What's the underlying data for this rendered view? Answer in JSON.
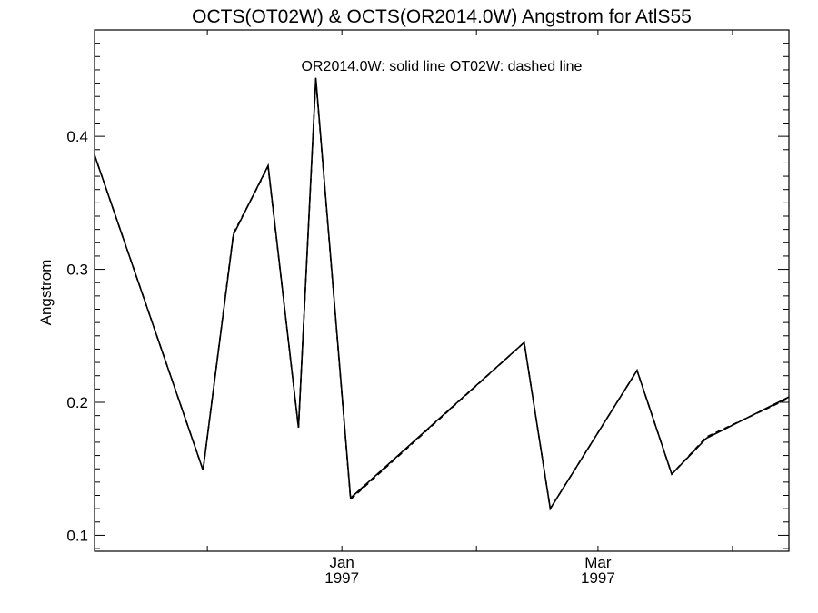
{
  "chart_data": {
    "type": "line",
    "title": "OCTS(OT02W) & OCTS(OR2014.0W)  Angstrom for AtlS55",
    "annotation": "OR2014.0W: solid line   OT02W: dashed line",
    "ylabel": "Angstrom",
    "xlabel": "",
    "x_range": [
      "1996-11-05",
      "1997-04-14"
    ],
    "ylim": [
      0.088,
      0.48
    ],
    "yticks": [
      0.1,
      0.2,
      0.3,
      0.4
    ],
    "ytick_labels": [
      "0.1",
      "0.2",
      "0.3",
      "0.4"
    ],
    "x_major_ticks": [
      {
        "date": "1997-01-01",
        "label_line1": "Jan",
        "label_line2": "1997"
      },
      {
        "date": "1997-03-01",
        "label_line1": "Mar",
        "label_line2": "1997"
      }
    ],
    "x_minor_tick_dates": [
      "1996-12-01",
      "1997-01-01",
      "1997-02-01",
      "1997-03-01",
      "1997-04-01"
    ],
    "series": [
      {
        "name": "OR2014.0W",
        "style": "solid",
        "color": "#000000",
        "x": [
          "1996-11-05",
          "1996-11-30",
          "1996-12-07",
          "1996-12-15",
          "1996-12-22",
          "1996-12-26",
          "1997-01-03",
          "1997-02-12",
          "1997-02-18",
          "1997-03-10",
          "1997-03-18",
          "1997-03-26",
          "1997-04-14"
        ],
        "values": [
          0.386,
          0.149,
          0.326,
          0.378,
          0.181,
          0.444,
          0.128,
          0.245,
          0.12,
          0.224,
          0.146,
          0.173,
          0.204
        ]
      },
      {
        "name": "OT02W",
        "style": "dashed",
        "color": "#000000",
        "x": [
          "1996-11-05",
          "1996-11-30",
          "1996-12-07",
          "1996-12-15",
          "1996-12-22",
          "1996-12-26",
          "1997-01-03",
          "1997-02-12",
          "1997-02-18",
          "1997-03-10",
          "1997-03-18",
          "1997-03-26",
          "1997-04-14"
        ],
        "values": [
          0.386,
          0.149,
          0.327,
          0.377,
          0.181,
          0.443,
          0.127,
          0.245,
          0.12,
          0.224,
          0.146,
          0.174,
          0.203
        ]
      }
    ]
  }
}
